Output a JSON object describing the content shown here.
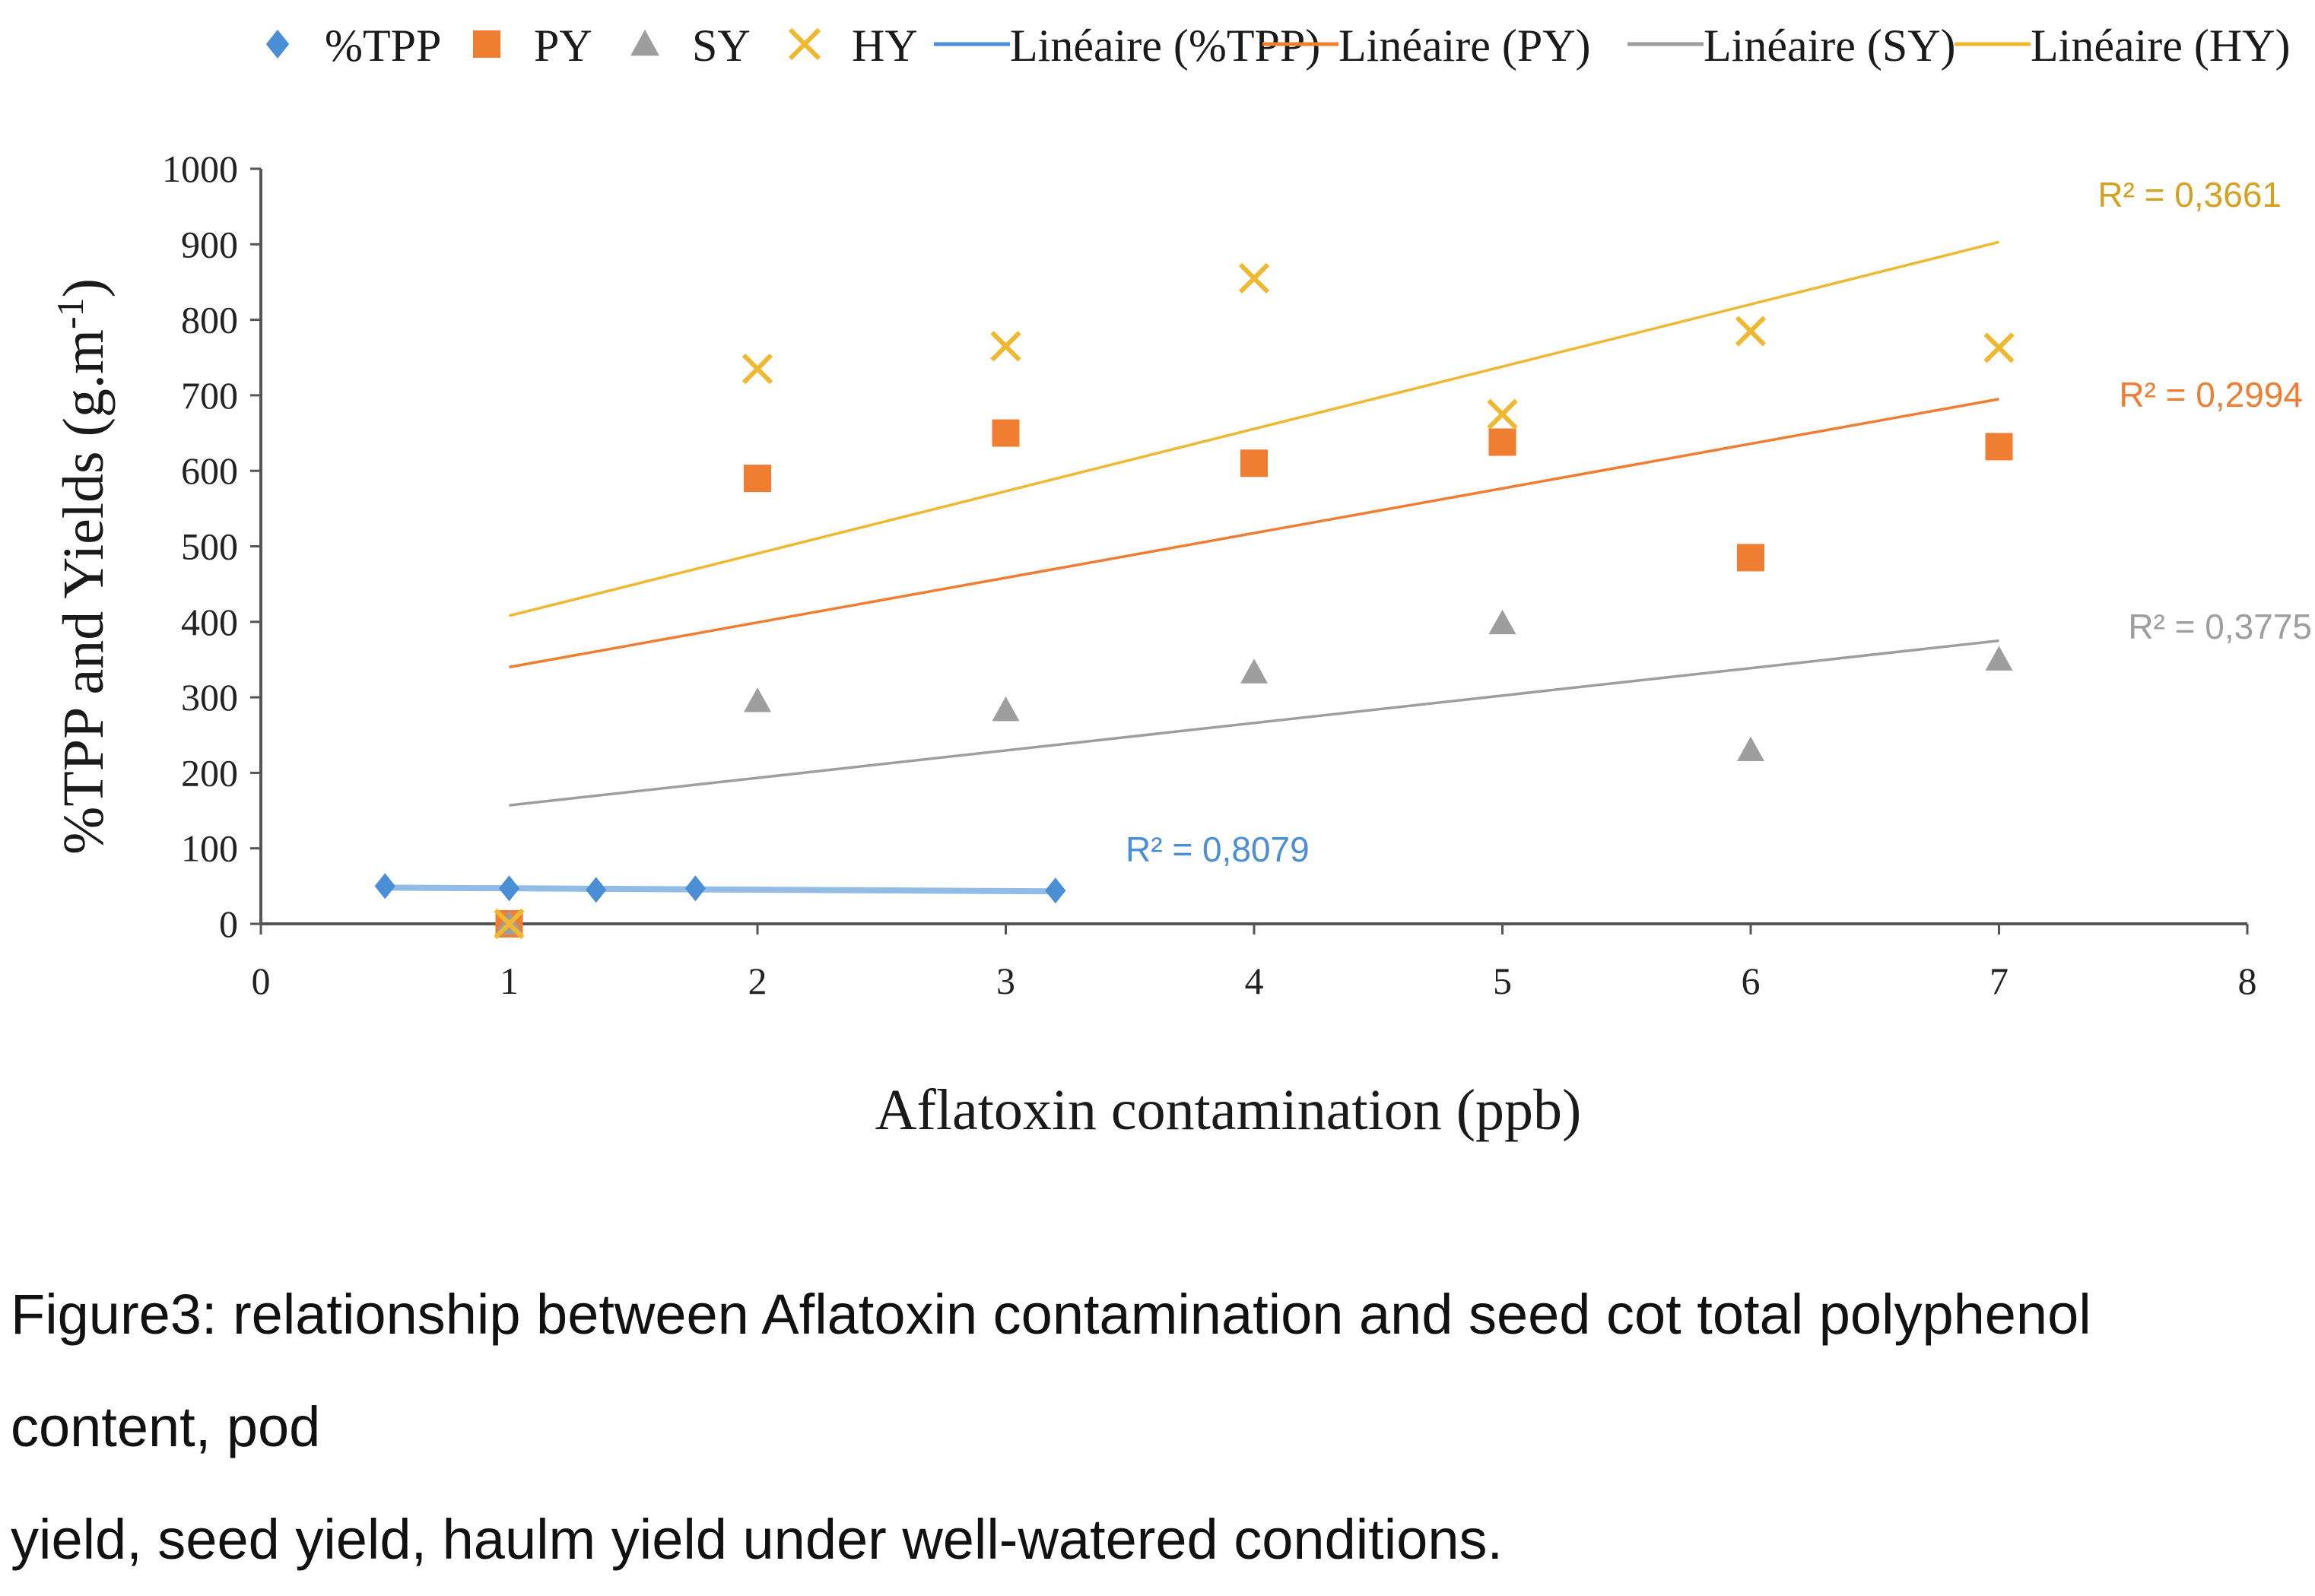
{
  "chart_data": {
    "type": "scatter",
    "title": "",
    "xlabel": "Aflatoxin contamination (ppb)",
    "ylabel": "%TPP and Yields (g.m",
    "ylabel_superscript": "-1",
    "ylabel_close": ")",
    "xlim": [
      0,
      8
    ],
    "ylim": [
      0,
      1000
    ],
    "x_ticks": [
      "0",
      "1",
      "2",
      "3",
      "4",
      "5",
      "6",
      "7",
      "8"
    ],
    "y_ticks": [
      "0",
      "100",
      "200",
      "300",
      "400",
      "500",
      "600",
      "700",
      "800",
      "900",
      "1000"
    ],
    "legend_position": "top",
    "series": [
      {
        "name": "%TPP",
        "marker": "diamond",
        "color": "#4a8fd6",
        "points": [
          [
            0.5,
            50
          ],
          [
            1.0,
            47
          ],
          [
            1.35,
            45
          ],
          [
            1.75,
            47
          ],
          [
            3.2,
            44
          ]
        ]
      },
      {
        "name": "PY",
        "marker": "square",
        "color": "#ef7d32",
        "points": [
          [
            1,
            0
          ],
          [
            2,
            590
          ],
          [
            3,
            650
          ],
          [
            4,
            610
          ],
          [
            5,
            638
          ],
          [
            6,
            485
          ],
          [
            7,
            632
          ]
        ]
      },
      {
        "name": "SY",
        "marker": "triangle",
        "color": "#9e9e9e",
        "points": [
          [
            1,
            0
          ],
          [
            2,
            295
          ],
          [
            3,
            283
          ],
          [
            4,
            333
          ],
          [
            5,
            398
          ],
          [
            6,
            230
          ],
          [
            7,
            350
          ]
        ]
      },
      {
        "name": "HY",
        "marker": "x",
        "color": "#f0b830",
        "points": [
          [
            1,
            0
          ],
          [
            2,
            735
          ],
          [
            3,
            765
          ],
          [
            4,
            855
          ],
          [
            5,
            675
          ],
          [
            6,
            785
          ],
          [
            7,
            763
          ]
        ]
      }
    ],
    "trendlines": [
      {
        "name": "Linéaire (%TPP)",
        "color": "#4a8fd6",
        "x": [
          0.5,
          3.2
        ],
        "y": [
          48,
          43
        ],
        "r2": "R² = 0,8079"
      },
      {
        "name": "Linéaire (PY)",
        "color": "#ef7d32",
        "x": [
          1,
          7
        ],
        "y": [
          340,
          695
        ],
        "r2": "R² = 0,2994"
      },
      {
        "name": "Linéaire (SY)",
        "color": "#9e9e9e",
        "x": [
          1,
          7
        ],
        "y": [
          157,
          375
        ],
        "r2": "R² = 0,3775"
      },
      {
        "name": "Linéaire (HY)",
        "color": "#f0b830",
        "x": [
          1,
          7
        ],
        "y": [
          408,
          903
        ],
        "r2": "R² = 0,3661"
      }
    ],
    "r2_colors": [
      "#4a8fd6",
      "#ef7d32",
      "#9e9e9e",
      "#d4a220"
    ]
  },
  "caption": {
    "line1": "Figure3: relationship between Aflatoxin contamination and seed cot total polyphenol content, pod",
    "line2": "yield, seed yield, haulm yield under well-watered conditions."
  }
}
